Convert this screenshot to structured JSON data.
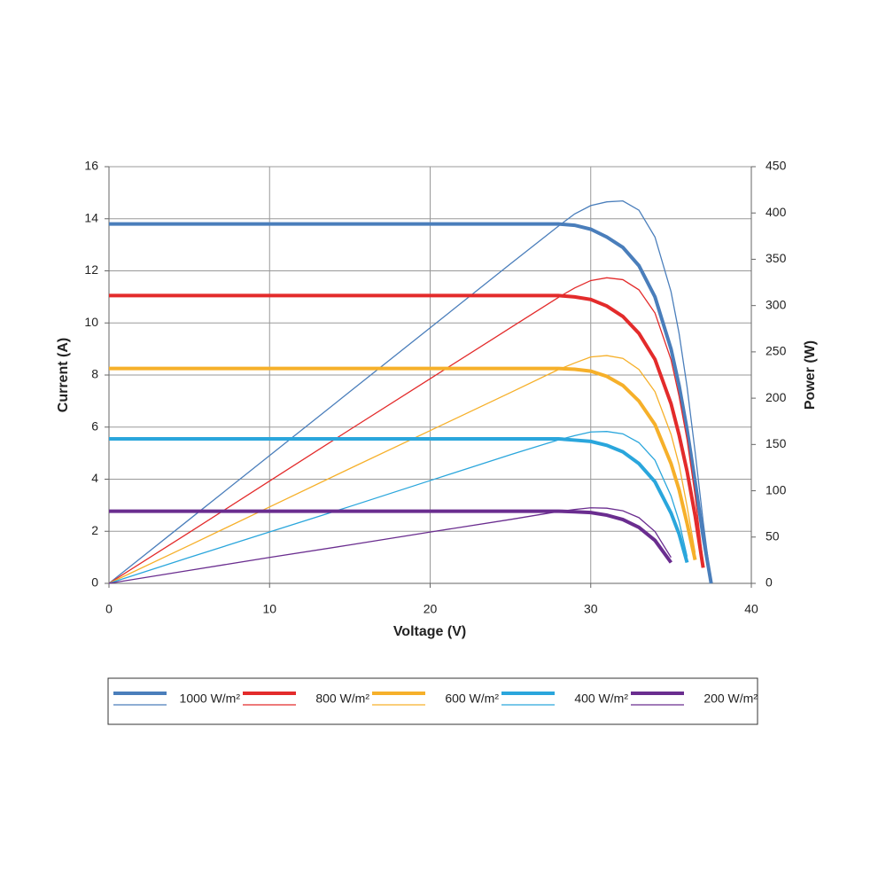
{
  "chart_data": {
    "type": "line",
    "xlabel": "Voltage (V)",
    "ylabel": "Current (A)",
    "y2label": "Power (W)",
    "x": [
      0,
      5,
      10,
      15,
      20,
      25,
      28,
      29,
      30,
      31,
      32,
      33,
      34,
      35,
      35.5,
      36,
      36.5,
      37,
      37.5
    ],
    "xlim": [
      0,
      40
    ],
    "xticks": [
      0,
      10,
      20,
      30,
      40
    ],
    "ylim": [
      0,
      16
    ],
    "yticks": [
      0,
      2,
      4,
      6,
      8,
      10,
      12,
      14,
      16
    ],
    "y2lim": [
      0,
      450
    ],
    "y2ticks": [
      0,
      50,
      100,
      150,
      200,
      250,
      300,
      350,
      400,
      450
    ],
    "grid": true,
    "series": [
      {
        "name": "1000 W/m²",
        "color": "#4a7ebb",
        "values": [
          13.8,
          13.8,
          13.8,
          13.8,
          13.8,
          13.8,
          13.8,
          13.75,
          13.6,
          13.3,
          12.9,
          12.2,
          11.0,
          9.0,
          7.6,
          5.9,
          3.9,
          1.8,
          0
        ],
        "power": [
          0,
          69,
          138,
          207,
          276,
          345,
          386,
          399,
          408,
          412,
          413,
          403,
          374,
          315,
          270,
          212,
          142,
          67,
          0
        ]
      },
      {
        "name": "800 W/m²",
        "color": "#e32b2b",
        "values": [
          11.05,
          11.05,
          11.05,
          11.05,
          11.05,
          11.05,
          11.05,
          11.0,
          10.9,
          10.65,
          10.25,
          9.6,
          8.6,
          6.9,
          5.7,
          4.3,
          2.6,
          0.6,
          null
        ],
        "power": [
          0,
          55,
          110.5,
          166,
          221,
          276,
          309,
          319,
          327,
          330,
          328,
          317,
          292,
          241.5,
          202,
          155,
          95,
          22,
          null
        ]
      },
      {
        "name": "600 W/m²",
        "color": "#f6b02a",
        "values": [
          8.25,
          8.25,
          8.25,
          8.25,
          8.25,
          8.25,
          8.25,
          8.22,
          8.15,
          7.95,
          7.6,
          7.0,
          6.1,
          4.6,
          3.6,
          2.3,
          0.9,
          null,
          null
        ],
        "power": [
          0,
          41,
          82.5,
          124,
          165,
          206,
          231,
          238,
          244.5,
          246,
          243,
          231,
          207,
          161,
          128,
          83,
          33,
          null,
          null
        ]
      },
      {
        "name": "400 W/m²",
        "color": "#2aa6dc",
        "values": [
          5.55,
          5.55,
          5.55,
          5.55,
          5.55,
          5.55,
          5.55,
          5.5,
          5.45,
          5.3,
          5.05,
          4.6,
          3.9,
          2.7,
          1.9,
          0.8,
          null,
          null,
          null
        ],
        "power": [
          0,
          28,
          55.5,
          83,
          111,
          139,
          155,
          159.5,
          163.5,
          164,
          161.5,
          152,
          133,
          94.5,
          67,
          29,
          null,
          null,
          null
        ]
      },
      {
        "name": "200 W/m²",
        "color": "#6a2d8f",
        "values": [
          2.77,
          2.77,
          2.77,
          2.77,
          2.77,
          2.77,
          2.77,
          2.75,
          2.72,
          2.62,
          2.45,
          2.15,
          1.65,
          0.8,
          null,
          null,
          null,
          null,
          null
        ],
        "power": [
          0,
          14,
          28,
          41.5,
          55.4,
          69,
          77.6,
          79.8,
          81.6,
          81.2,
          78.4,
          71,
          56,
          28,
          null,
          null,
          null,
          null,
          null
        ]
      }
    ]
  }
}
